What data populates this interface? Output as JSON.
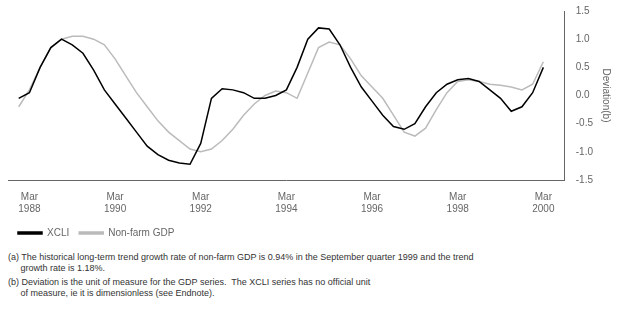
{
  "chart_data": {
    "type": "line",
    "ylabel": "Deviation(b)",
    "annotations": [
      "(a) The historical long-term trend growth rate of non-farm GDP is 0.94% in the September quarter 1999 and the trend\n     growth rate is 1.18%.",
      "(b) Deviation is the unit of measure for the GDP series.  The XCLI series has no official unit\n     of measure, ie it is dimensionless (see Endnote)."
    ],
    "x": [
      1987.75,
      1988.0,
      1988.25,
      1988.5,
      1988.75,
      1989.0,
      1989.25,
      1989.5,
      1989.75,
      1990.0,
      1990.25,
      1990.5,
      1990.75,
      1991.0,
      1991.25,
      1991.5,
      1991.75,
      1992.0,
      1992.25,
      1992.5,
      1992.75,
      1993.0,
      1993.25,
      1993.5,
      1993.75,
      1994.0,
      1994.25,
      1994.5,
      1994.75,
      1995.0,
      1995.25,
      1995.5,
      1995.75,
      1996.0,
      1996.25,
      1996.5,
      1996.75,
      1997.0,
      1997.25,
      1997.5,
      1997.75,
      1998.0,
      1998.25,
      1998.5,
      1998.75,
      1999.0,
      1999.25,
      1999.5,
      1999.75,
      2000.0
    ],
    "series": [
      {
        "name": "XCLI",
        "color": "#000000",
        "values": [
          -0.05,
          0.05,
          0.5,
          0.85,
          1.0,
          0.9,
          0.75,
          0.45,
          0.1,
          -0.15,
          -0.4,
          -0.65,
          -0.9,
          -1.05,
          -1.15,
          -1.2,
          -1.22,
          -0.85,
          -0.05,
          0.12,
          0.1,
          0.05,
          -0.05,
          -0.05,
          0.0,
          0.1,
          0.5,
          1.0,
          1.2,
          1.18,
          0.9,
          0.5,
          0.15,
          -0.1,
          -0.35,
          -0.55,
          -0.6,
          -0.5,
          -0.2,
          0.05,
          0.2,
          0.28,
          0.3,
          0.25,
          0.1,
          -0.05,
          -0.28,
          -0.2,
          0.05,
          0.5
        ]
      },
      {
        "name": "Non-farm GDP",
        "color": "#bbbbbb",
        "values": [
          -0.2,
          0.1,
          0.5,
          0.85,
          1.0,
          1.05,
          1.05,
          1.0,
          0.9,
          0.65,
          0.35,
          0.05,
          -0.2,
          -0.45,
          -0.65,
          -0.8,
          -0.95,
          -1.0,
          -0.95,
          -0.8,
          -0.6,
          -0.35,
          -0.15,
          0.0,
          0.08,
          0.05,
          -0.05,
          0.4,
          0.85,
          0.95,
          0.9,
          0.65,
          0.35,
          0.15,
          -0.05,
          -0.35,
          -0.65,
          -0.72,
          -0.58,
          -0.25,
          0.05,
          0.25,
          0.28,
          0.25,
          0.2,
          0.18,
          0.15,
          0.1,
          0.2,
          0.6
        ]
      }
    ],
    "xlim": [
      1987.5,
      2000.5
    ],
    "xticks": [
      {
        "value": 1988.0,
        "label": "Mar\n1988"
      },
      {
        "value": 1990.0,
        "label": "Mar\n1990"
      },
      {
        "value": 1992.0,
        "label": "Mar\n1992"
      },
      {
        "value": 1994.0,
        "label": "Mar\n1994"
      },
      {
        "value": 1996.0,
        "label": "Mar\n1996"
      },
      {
        "value": 1998.0,
        "label": "Mar\n1998"
      },
      {
        "value": 2000.0,
        "label": "Mar\n2000"
      }
    ],
    "ylim": [
      -1.5,
      1.5
    ],
    "yticks": [
      -1.5,
      {
        "value": -1.0,
        "label": "-1.0"
      },
      -0.5,
      {
        "value": 0.0,
        "label": "0.0"
      },
      0.5,
      {
        "value": 1.0,
        "label": "1.0"
      },
      1.5
    ],
    "grid": false,
    "legend": "lower left"
  }
}
